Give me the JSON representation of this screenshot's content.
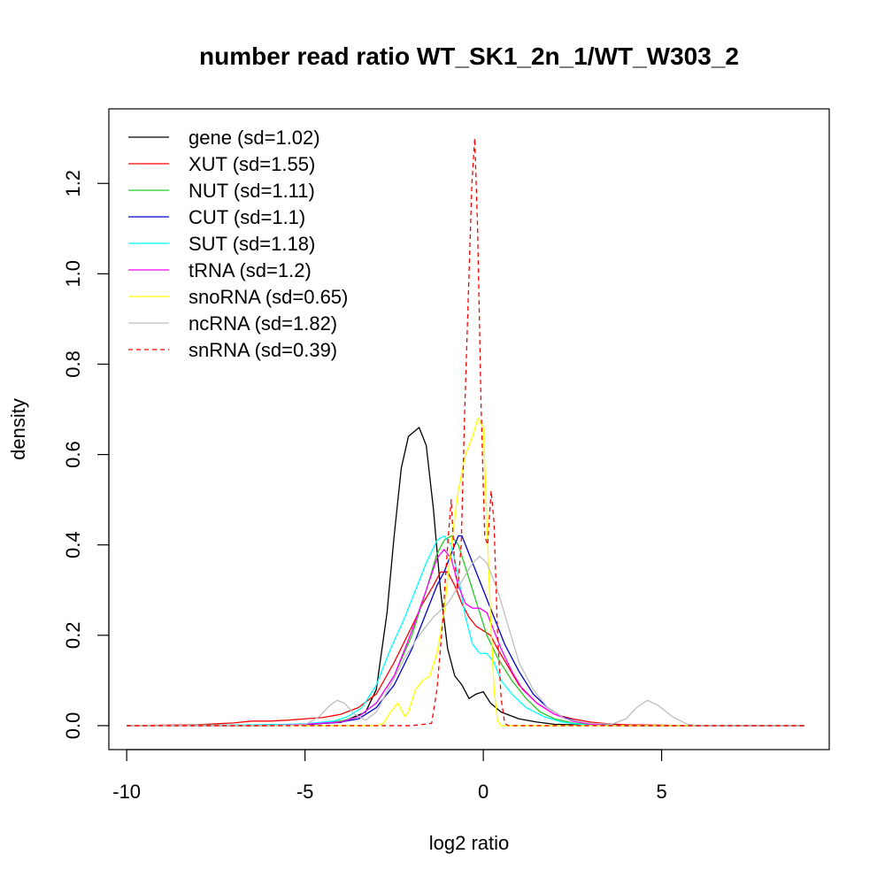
{
  "chart_data": {
    "type": "line",
    "title": "number read ratio WT_SK1_2n_1/WT_W303_2",
    "xlabel": "log2 ratio",
    "ylabel": "density",
    "xlim": [
      -10.5,
      9.7
    ],
    "ylim": [
      -0.053,
      1.365
    ],
    "xticks": [
      "-10",
      "-5",
      "0",
      "5"
    ],
    "yticks": [
      "0.0",
      "0.2",
      "0.4",
      "0.6",
      "0.8",
      "1.0",
      "1.2"
    ],
    "legend_position": "top-left",
    "grid": false,
    "series": [
      {
        "name": "gene (sd=1.02)",
        "color": "#000000",
        "dash": false,
        "points": [
          [
            -10,
            0
          ],
          [
            -7,
            0.001
          ],
          [
            -5,
            0.003
          ],
          [
            -4,
            0.007
          ],
          [
            -3.3,
            0.03
          ],
          [
            -3,
            0.08
          ],
          [
            -2.7,
            0.25
          ],
          [
            -2.5,
            0.42
          ],
          [
            -2.3,
            0.57
          ],
          [
            -2.1,
            0.64
          ],
          [
            -1.8,
            0.66
          ],
          [
            -1.6,
            0.62
          ],
          [
            -1.4,
            0.48
          ],
          [
            -1.2,
            0.3
          ],
          [
            -1,
            0.17
          ],
          [
            -0.8,
            0.11
          ],
          [
            -0.6,
            0.09
          ],
          [
            -0.4,
            0.06
          ],
          [
            -0.2,
            0.07
          ],
          [
            0,
            0.075
          ],
          [
            0.2,
            0.05
          ],
          [
            0.5,
            0.03
          ],
          [
            1,
            0.015
          ],
          [
            1.5,
            0.008
          ],
          [
            2,
            0.003
          ],
          [
            3,
            0.001
          ],
          [
            5,
            0
          ],
          [
            9,
            0
          ]
        ]
      },
      {
        "name": "XUT (sd=1.55)",
        "color": "#ff0000",
        "dash": false,
        "points": [
          [
            -10,
            0
          ],
          [
            -8,
            0.002
          ],
          [
            -7,
            0.006
          ],
          [
            -6.5,
            0.01
          ],
          [
            -6,
            0.01
          ],
          [
            -5.5,
            0.012
          ],
          [
            -5,
            0.015
          ],
          [
            -4.5,
            0.018
          ],
          [
            -4,
            0.025
          ],
          [
            -3.5,
            0.04
          ],
          [
            -3,
            0.07
          ],
          [
            -2.5,
            0.14
          ],
          [
            -2,
            0.22
          ],
          [
            -1.7,
            0.27
          ],
          [
            -1.4,
            0.31
          ],
          [
            -1.2,
            0.34
          ],
          [
            -1,
            0.34
          ],
          [
            -0.8,
            0.31
          ],
          [
            -0.6,
            0.27
          ],
          [
            -0.4,
            0.24
          ],
          [
            -0.2,
            0.22
          ],
          [
            0,
            0.21
          ],
          [
            0.2,
            0.2
          ],
          [
            0.4,
            0.17
          ],
          [
            0.7,
            0.13
          ],
          [
            1,
            0.09
          ],
          [
            1.5,
            0.05
          ],
          [
            2,
            0.025
          ],
          [
            2.5,
            0.015
          ],
          [
            3,
            0.008
          ],
          [
            3.5,
            0.004
          ],
          [
            4,
            0.002
          ],
          [
            5,
            0.001
          ],
          [
            6,
            0
          ],
          [
            9,
            0
          ]
        ]
      },
      {
        "name": "NUT (sd=1.11)",
        "color": "#22cc22",
        "dash": false,
        "points": [
          [
            -10,
            0
          ],
          [
            -6,
            0
          ],
          [
            -5,
            0.003
          ],
          [
            -4,
            0.01
          ],
          [
            -3.5,
            0.02
          ],
          [
            -3,
            0.05
          ],
          [
            -2.5,
            0.11
          ],
          [
            -2,
            0.2
          ],
          [
            -1.6,
            0.3
          ],
          [
            -1.3,
            0.38
          ],
          [
            -1.1,
            0.41
          ],
          [
            -0.9,
            0.42
          ],
          [
            -0.7,
            0.4
          ],
          [
            -0.5,
            0.35
          ],
          [
            -0.3,
            0.3
          ],
          [
            -0.1,
            0.25
          ],
          [
            0.1,
            0.2
          ],
          [
            0.4,
            0.15
          ],
          [
            0.8,
            0.1
          ],
          [
            1.2,
            0.06
          ],
          [
            1.6,
            0.03
          ],
          [
            2,
            0.015
          ],
          [
            2.5,
            0.006
          ],
          [
            3,
            0.002
          ],
          [
            4,
            0
          ],
          [
            9,
            0
          ]
        ]
      },
      {
        "name": "CUT (sd=1.1)",
        "color": "#0000cc",
        "dash": false,
        "points": [
          [
            -10,
            0
          ],
          [
            -6,
            0
          ],
          [
            -5,
            0.002
          ],
          [
            -4,
            0.008
          ],
          [
            -3.5,
            0.015
          ],
          [
            -3,
            0.04
          ],
          [
            -2.5,
            0.09
          ],
          [
            -2,
            0.17
          ],
          [
            -1.6,
            0.25
          ],
          [
            -1.3,
            0.31
          ],
          [
            -1.1,
            0.34
          ],
          [
            -0.9,
            0.38
          ],
          [
            -0.7,
            0.42
          ],
          [
            -0.6,
            0.42
          ],
          [
            -0.4,
            0.38
          ],
          [
            -0.2,
            0.34
          ],
          [
            0,
            0.3
          ],
          [
            0.3,
            0.24
          ],
          [
            0.6,
            0.18
          ],
          [
            1,
            0.12
          ],
          [
            1.4,
            0.07
          ],
          [
            1.8,
            0.04
          ],
          [
            2.2,
            0.02
          ],
          [
            2.7,
            0.008
          ],
          [
            3.2,
            0.003
          ],
          [
            4,
            0
          ],
          [
            9,
            0
          ]
        ]
      },
      {
        "name": "SUT (sd=1.18)",
        "color": "#00ffff",
        "dash": false,
        "points": [
          [
            -10,
            0
          ],
          [
            -6,
            0.002
          ],
          [
            -5,
            0.004
          ],
          [
            -4.2,
            0.01
          ],
          [
            -3.8,
            0.02
          ],
          [
            -3.4,
            0.04
          ],
          [
            -3,
            0.09
          ],
          [
            -2.6,
            0.17
          ],
          [
            -2.2,
            0.24
          ],
          [
            -1.9,
            0.3
          ],
          [
            -1.6,
            0.36
          ],
          [
            -1.3,
            0.41
          ],
          [
            -1.1,
            0.42
          ],
          [
            -0.9,
            0.4
          ],
          [
            -0.7,
            0.33
          ],
          [
            -0.5,
            0.24
          ],
          [
            -0.3,
            0.18
          ],
          [
            -0.1,
            0.16
          ],
          [
            0.1,
            0.16
          ],
          [
            0.3,
            0.14
          ],
          [
            0.5,
            0.1
          ],
          [
            0.8,
            0.07
          ],
          [
            1.2,
            0.04
          ],
          [
            1.7,
            0.02
          ],
          [
            2.2,
            0.008
          ],
          [
            2.8,
            0.002
          ],
          [
            3.5,
            0
          ],
          [
            9,
            0
          ]
        ]
      },
      {
        "name": "tRNA (sd=1.2)",
        "color": "#ff00ff",
        "dash": false,
        "points": [
          [
            -10,
            0
          ],
          [
            -6,
            0
          ],
          [
            -5,
            0.003
          ],
          [
            -4,
            0.008
          ],
          [
            -3.5,
            0.02
          ],
          [
            -3,
            0.05
          ],
          [
            -2.5,
            0.11
          ],
          [
            -2,
            0.21
          ],
          [
            -1.6,
            0.3
          ],
          [
            -1.3,
            0.37
          ],
          [
            -1.1,
            0.39
          ],
          [
            -0.9,
            0.37
          ],
          [
            -0.7,
            0.31
          ],
          [
            -0.5,
            0.27
          ],
          [
            -0.3,
            0.26
          ],
          [
            -0.1,
            0.26
          ],
          [
            0.1,
            0.25
          ],
          [
            0.3,
            0.21
          ],
          [
            0.5,
            0.17
          ],
          [
            0.8,
            0.12
          ],
          [
            1.1,
            0.08
          ],
          [
            1.5,
            0.05
          ],
          [
            2,
            0.025
          ],
          [
            2.5,
            0.01
          ],
          [
            3,
            0.003
          ],
          [
            3.5,
            0
          ],
          [
            9,
            0
          ]
        ]
      },
      {
        "name": "snoRNA (sd=0.65)",
        "color": "#ffff00",
        "dash": false,
        "points": [
          [
            -10,
            0
          ],
          [
            -3,
            0
          ],
          [
            -2.8,
            0.005
          ],
          [
            -2.6,
            0.03
          ],
          [
            -2.4,
            0.05
          ],
          [
            -2.2,
            0.02
          ],
          [
            -2.1,
            0.03
          ],
          [
            -1.9,
            0.08
          ],
          [
            -1.7,
            0.1
          ],
          [
            -1.5,
            0.11
          ],
          [
            -1.3,
            0.16
          ],
          [
            -1.1,
            0.25
          ],
          [
            -0.9,
            0.4
          ],
          [
            -0.7,
            0.52
          ],
          [
            -0.5,
            0.6
          ],
          [
            -0.3,
            0.64
          ],
          [
            -0.15,
            0.68
          ],
          [
            0,
            0.66
          ],
          [
            0.1,
            0.45
          ],
          [
            0.2,
            0.25
          ],
          [
            0.3,
            0.08
          ],
          [
            0.4,
            0.01
          ],
          [
            0.5,
            0
          ],
          [
            9,
            0
          ]
        ]
      },
      {
        "name": "ncRNA (sd=1.82)",
        "color": "#bebebe",
        "dash": false,
        "points": [
          [
            -10,
            0
          ],
          [
            -6,
            0
          ],
          [
            -5,
            0.002
          ],
          [
            -4.6,
            0.02
          ],
          [
            -4.3,
            0.045
          ],
          [
            -4.1,
            0.056
          ],
          [
            -3.9,
            0.05
          ],
          [
            -3.6,
            0.025
          ],
          [
            -3.3,
            0.012
          ],
          [
            -3,
            0.03
          ],
          [
            -2.6,
            0.09
          ],
          [
            -2.2,
            0.15
          ],
          [
            -1.8,
            0.2
          ],
          [
            -1.4,
            0.24
          ],
          [
            -1,
            0.27
          ],
          [
            -0.6,
            0.32
          ],
          [
            -0.3,
            0.36
          ],
          [
            -0.1,
            0.375
          ],
          [
            0.1,
            0.36
          ],
          [
            0.4,
            0.3
          ],
          [
            0.7,
            0.22
          ],
          [
            1,
            0.14
          ],
          [
            1.4,
            0.08
          ],
          [
            1.8,
            0.04
          ],
          [
            2.3,
            0.015
          ],
          [
            3,
            0.005
          ],
          [
            3.6,
            0.003
          ],
          [
            4,
            0.015
          ],
          [
            4.3,
            0.04
          ],
          [
            4.6,
            0.056
          ],
          [
            4.9,
            0.045
          ],
          [
            5.3,
            0.02
          ],
          [
            5.7,
            0.004
          ],
          [
            6,
            0
          ],
          [
            9,
            0
          ]
        ]
      },
      {
        "name": "snRNA (sd=0.39)",
        "color": "#ff0000",
        "dash": true,
        "points": [
          [
            -10,
            0
          ],
          [
            -2,
            0
          ],
          [
            -1.45,
            0.005
          ],
          [
            -1.3,
            0.08
          ],
          [
            -1.15,
            0.22
          ],
          [
            -1.0,
            0.4
          ],
          [
            -0.9,
            0.5
          ],
          [
            -0.82,
            0.38
          ],
          [
            -0.72,
            0.3
          ],
          [
            -0.62,
            0.4
          ],
          [
            -0.52,
            0.7
          ],
          [
            -0.42,
            0.95
          ],
          [
            -0.32,
            1.2
          ],
          [
            -0.24,
            1.3
          ],
          [
            -0.16,
            1.1
          ],
          [
            -0.06,
            0.7
          ],
          [
            0.04,
            0.42
          ],
          [
            0.12,
            0.4
          ],
          [
            0.22,
            0.52
          ],
          [
            0.3,
            0.45
          ],
          [
            0.4,
            0.2
          ],
          [
            0.5,
            0.06
          ],
          [
            0.6,
            0.005
          ],
          [
            0.7,
            0
          ],
          [
            9,
            0
          ]
        ]
      }
    ]
  }
}
